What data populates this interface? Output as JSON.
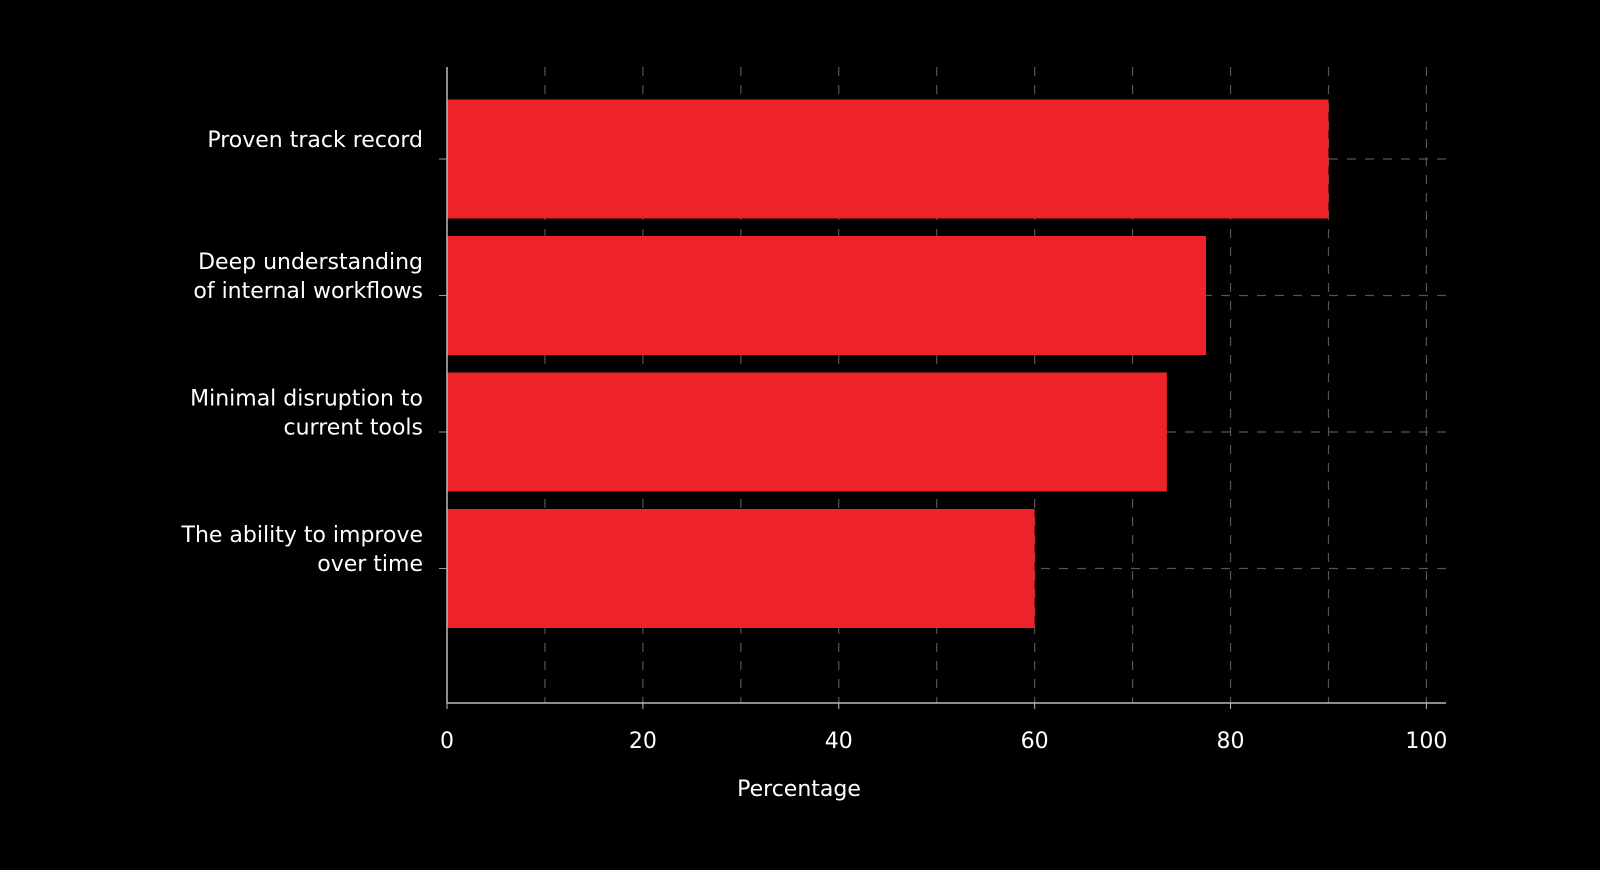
{
  "chart_data": {
    "type": "barh",
    "x_label": "Percentage",
    "categories": [
      "Proven track record",
      "Deep understanding\nof internal workflows",
      "Minimal disruption to\ncurrent tools",
      "The ability to improve\nover time"
    ],
    "values": [
      90,
      77.5,
      73.5,
      60
    ],
    "color": "#ee232a",
    "xlim": [
      0,
      102
    ],
    "xticks": [
      0,
      20,
      40,
      60,
      80,
      100
    ],
    "xminorticks": [
      10,
      30,
      50,
      70,
      90
    ],
    "grid": true
  }
}
